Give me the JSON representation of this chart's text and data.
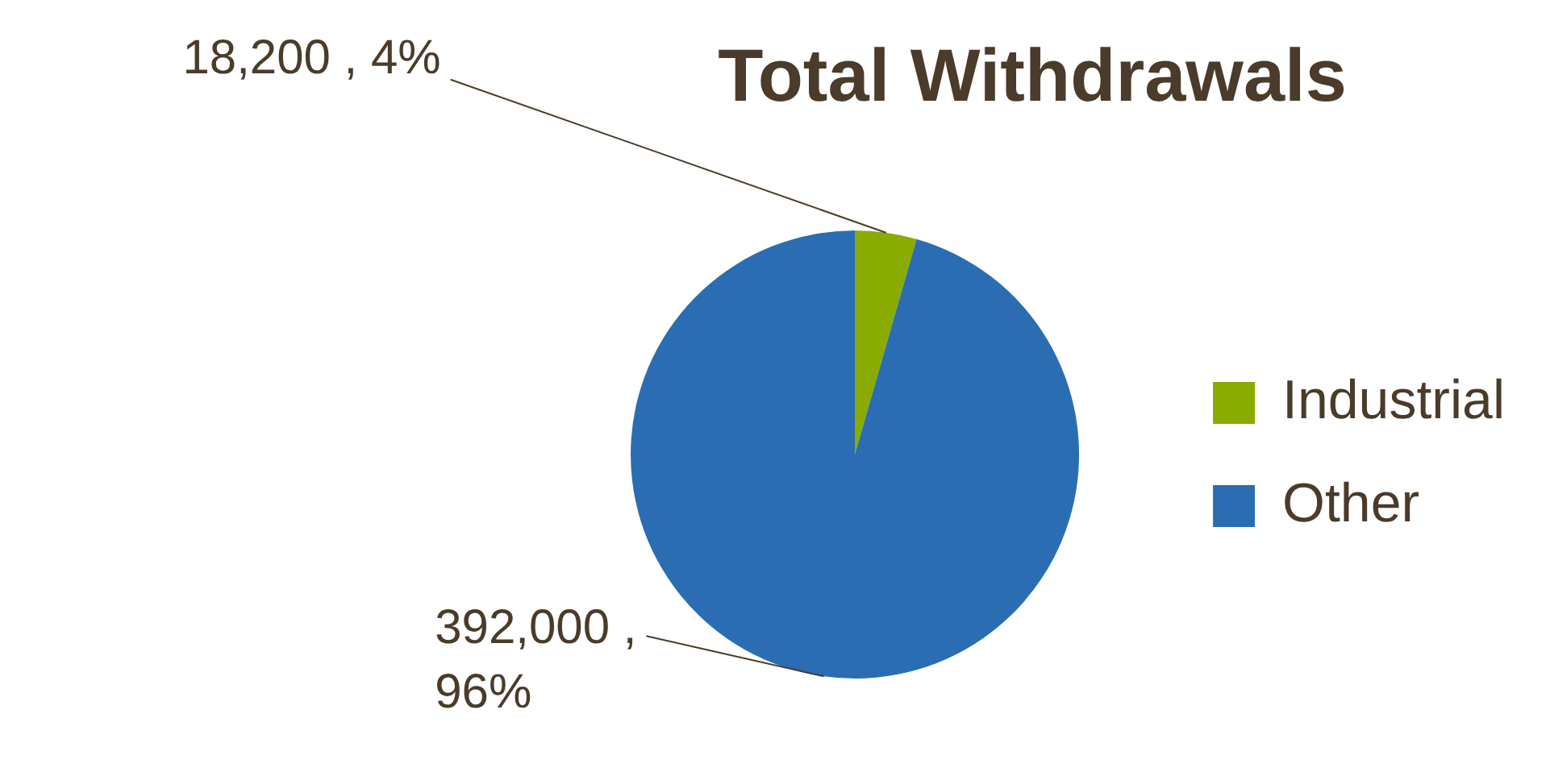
{
  "chart_data": {
    "type": "pie",
    "title": "Total Withdrawals",
    "categories": [
      "Industrial",
      "Other"
    ],
    "values": [
      18200,
      392000
    ],
    "colors": [
      "#8aab00",
      "#2a6db3"
    ],
    "value_labels": [
      "18,200 , 4%",
      "392,000 , 96%"
    ],
    "legend": "right"
  }
}
